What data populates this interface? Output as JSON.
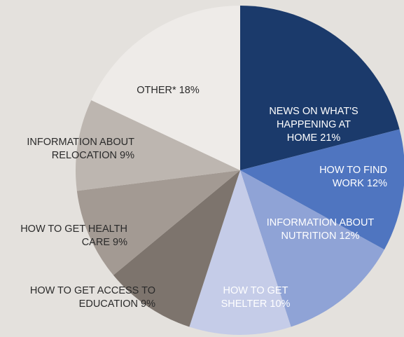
{
  "chart_data": {
    "type": "pie",
    "categories": [
      "NEWS ON WHAT'S HAPPENING AT HOME",
      "HOW TO FIND WORK",
      "INFORMATION ABOUT NUTRITION",
      "HOW TO GET SHELTER",
      "HOW TO GET ACCESS TO EDUCATION",
      "HOW TO GET HEALTH CARE",
      "INFORMATION ABOUT RELOCATION",
      "OTHER*"
    ],
    "values": [
      21,
      12,
      12,
      10,
      9,
      9,
      9,
      18
    ],
    "value_labels": [
      "21%",
      "12%",
      "12%",
      "10%",
      "9%",
      "9%",
      "9%",
      "18%"
    ],
    "colors": [
      "#1b3a6b",
      "#4f75c0",
      "#8fa3d6",
      "#c5cce8",
      "#7d746d",
      "#a39a93",
      "#bdb6b0",
      "#eeebe8"
    ]
  }
}
